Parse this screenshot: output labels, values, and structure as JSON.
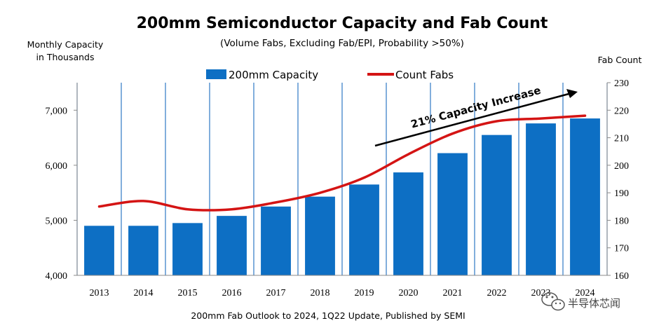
{
  "chart_data": {
    "type": "bar",
    "title": "200mm Semiconductor Capacity and Fab Count",
    "subtitle": "(Volume Fabs, Excluding Fab/EPI, Probability >50%)",
    "ylabel_left": [
      "Monthly Capacity",
      "in Thousands"
    ],
    "ylabel_right": "Fab Count",
    "categories": [
      "2013",
      "2014",
      "2015",
      "2016",
      "2017",
      "2018",
      "2019",
      "2020",
      "2021",
      "2022",
      "2023",
      "2024"
    ],
    "series": [
      {
        "name": "200mm Capacity",
        "type": "bar",
        "axis": "left",
        "color": "#0d6fc4",
        "values": [
          4900,
          4900,
          4950,
          5080,
          5250,
          5430,
          5650,
          5870,
          6220,
          6550,
          6760,
          6850
        ]
      },
      {
        "name": "Count Fabs",
        "type": "line",
        "axis": "right",
        "color": "#d41414",
        "values": [
          185,
          187,
          184,
          184,
          186.5,
          190,
          195.5,
          204,
          211.5,
          216,
          217,
          218
        ]
      }
    ],
    "ylim_left": [
      4000,
      7500
    ],
    "yticks_left": [
      4000,
      5000,
      6000,
      7000
    ],
    "yticks_left_labels": [
      "4,000",
      "5,000",
      "6,000",
      "7,000"
    ],
    "ylim_right": [
      160,
      230
    ],
    "yticks_right": [
      160,
      170,
      180,
      190,
      200,
      210,
      220,
      230
    ],
    "yticks_right_labels": [
      "160",
      "170",
      "180",
      "190",
      "200",
      "210",
      "220",
      "230"
    ],
    "grid": "vertical",
    "legend": "top",
    "annotation": "21% Capacity Increase",
    "source": "200mm Fab Outlook to 2024, 1Q22 Update, Published by SEMI"
  },
  "watermark": {
    "text": "半导体芯闻",
    "icon": "wechat-icon"
  }
}
